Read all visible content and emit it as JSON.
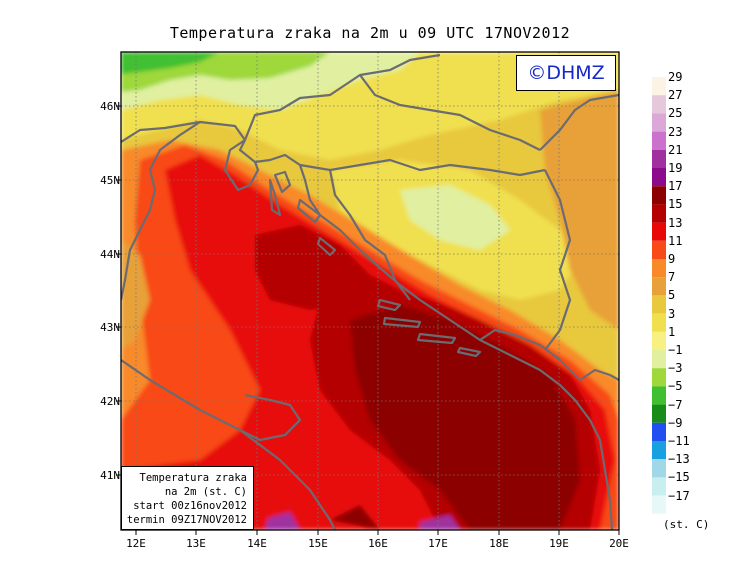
{
  "title": "Temperatura zraka na 2m u 09 UTC 17NOV2012",
  "logo": "©DHMZ",
  "lat_labels": [
    "46N",
    "45N",
    "44N",
    "43N",
    "42N",
    "41N"
  ],
  "lon_labels": [
    "12E",
    "13E",
    "14E",
    "15E",
    "16E",
    "17E",
    "18E",
    "19E",
    "20E"
  ],
  "info": {
    "line1": "Temperatura zraka",
    "line2": "na 2m (st. C)",
    "line3": "start 00z16nov2012",
    "line4": "termin 09Z17NOV2012"
  },
  "legend": {
    "units": "(st. C)",
    "labels": [
      "29",
      "27",
      "25",
      "23",
      "21",
      "19",
      "17",
      "15",
      "13",
      "11",
      "9",
      "7",
      "5",
      "3",
      "1",
      "−1",
      "−3",
      "−5",
      "−7",
      "−9",
      "−11",
      "−13",
      "−15",
      "−17"
    ],
    "colors": [
      "#fdf2e6",
      "#e6c8dc",
      "#dca8d8",
      "#cc72cc",
      "#a030a0",
      "#8c0a8c",
      "#8c0000",
      "#b40000",
      "#e80808",
      "#f84a18",
      "#f88a2a",
      "#e8a038",
      "#e8c83c",
      "#f0e050",
      "#f8f080",
      "#e0f0a0",
      "#9ed83a",
      "#40c030",
      "#188c18",
      "#2050f0",
      "#18a0e0",
      "#a0d8e8",
      "#c8eef0",
      "#e8f8f8"
    ]
  },
  "map": {
    "lat_range": [
      40.25,
      46.75
    ],
    "lon_range": [
      11.75,
      20.0
    ]
  }
}
